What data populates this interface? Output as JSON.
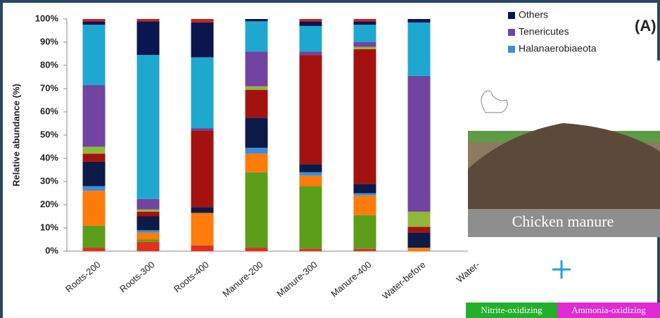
{
  "chart_data": {
    "type": "stacked-bar",
    "y_label": "Relative abundance (%)",
    "categories": [
      "Roots-200",
      "Roots-300",
      "Roots-400",
      "Manure-200",
      "Manure-300",
      "Manure-400",
      "Water-before",
      "Water-"
    ],
    "series": [
      {
        "color": "#e0301e",
        "values": [
          1.5,
          4,
          2.5,
          1.5,
          1,
          1,
          0,
          null
        ]
      },
      {
        "color": "#5c9e1a",
        "values": [
          9.5,
          1,
          0,
          32.5,
          27,
          14.5,
          0,
          null
        ]
      },
      {
        "color": "#ff7b0a",
        "values": [
          15,
          3,
          14,
          8,
          4.5,
          8.5,
          1.5,
          null
        ]
      },
      {
        "name": "Halanaerobiaeota",
        "color": "#3d8ed4",
        "values": [
          2,
          1,
          0,
          2.5,
          1.5,
          1,
          0,
          null
        ]
      },
      {
        "color": "#0c1a48",
        "values": [
          10.5,
          6,
          2.5,
          13,
          3.5,
          4,
          6.5,
          null
        ]
      },
      {
        "color": "#a3120f",
        "values": [
          3.5,
          2,
          33,
          12,
          47,
          58,
          2.5,
          null
        ]
      },
      {
        "color": "#92b83a",
        "values": [
          3,
          1,
          0,
          1.5,
          0,
          1,
          6.5,
          null
        ]
      },
      {
        "name": "Tenericutes",
        "color": "#7044a0",
        "values": [
          26.5,
          4.5,
          1,
          15,
          1.5,
          2,
          58.5,
          null
        ]
      },
      {
        "color": "#1fa8cf",
        "values": [
          26,
          62,
          30.5,
          13,
          11,
          7.5,
          23,
          null
        ]
      },
      {
        "name": "Others",
        "color": "#0a1650",
        "values": [
          1.5,
          14.5,
          15,
          1,
          2,
          1.5,
          1.5,
          null
        ]
      },
      {
        "color": "#c8241a",
        "values": [
          1,
          1,
          1.5,
          0,
          1,
          1,
          0,
          null
        ]
      }
    ],
    "ylim": [
      0,
      100
    ],
    "yticks": [
      {
        "value": 0,
        "label": "0%"
      },
      {
        "value": 10,
        "label": "10%"
      },
      {
        "value": 20,
        "label": "20%"
      },
      {
        "value": 30,
        "label": "30%"
      },
      {
        "value": 40,
        "label": "40%"
      },
      {
        "value": 50,
        "label": "50%"
      },
      {
        "value": 60,
        "label": "60%"
      },
      {
        "value": 70,
        "label": "70%"
      },
      {
        "value": 80,
        "label": "80%"
      },
      {
        "value": 90,
        "label": "90%"
      },
      {
        "value": 100,
        "label": "100%"
      }
    ],
    "grid": false
  },
  "panel": {
    "label": "(A)",
    "caption": "Chicken manure",
    "boxes": [
      "Nitrite-oxidizing",
      "Ammonia-oxidizing"
    ]
  }
}
